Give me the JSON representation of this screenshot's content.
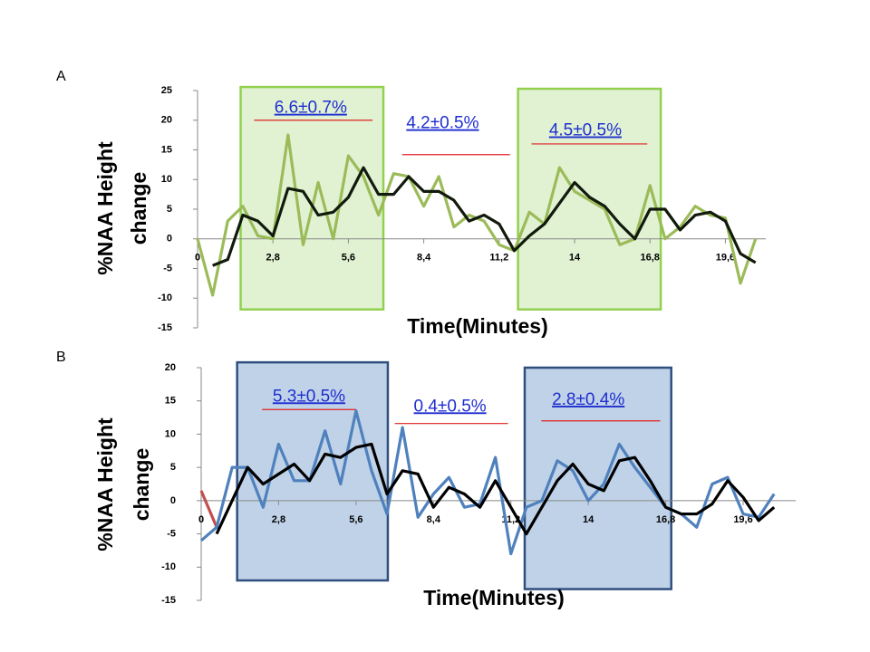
{
  "chart_data": [
    {
      "type": "line",
      "panel_label": "A",
      "ylabel": [
        "%NAA Height",
        "change"
      ],
      "xlabel": "Time(Minutes)",
      "xlim": [
        0,
        21.1
      ],
      "ylim": [
        -15,
        25
      ],
      "xticks": [
        0,
        {
          "value": 2.8,
          "label": "2,8"
        },
        {
          "value": 5.6,
          "label": "5,6"
        },
        {
          "value": 8.4,
          "label": "8,4"
        },
        {
          "value": 11.2,
          "label": "11,2"
        },
        14,
        {
          "value": 16.8,
          "label": "16,8"
        },
        {
          "value": 19.6,
          "label": "19,6"
        }
      ],
      "yticks": [
        -15,
        -10,
        -5,
        0,
        5,
        10,
        15,
        20,
        25
      ],
      "x": [
        0,
        0.56,
        1.12,
        1.68,
        2.24,
        2.8,
        3.36,
        3.92,
        4.48,
        5.04,
        5.6,
        6.16,
        6.72,
        7.28,
        7.84,
        8.4,
        8.96,
        9.52,
        10.08,
        10.64,
        11.2,
        11.76,
        12.32,
        12.88,
        13.44,
        14,
        14.56,
        15.12,
        15.68,
        16.24,
        16.8,
        17.36,
        17.92,
        18.48,
        19.04,
        19.6,
        20.16,
        20.72
      ],
      "series": [
        {
          "color": "#9bbb59",
          "values": [
            0,
            -9.5,
            3,
            5.5,
            0.5,
            0,
            17.5,
            -1,
            9.5,
            0,
            14,
            10.5,
            4,
            11,
            10.5,
            5.5,
            10.5,
            2,
            4,
            3,
            -1,
            -2,
            4.5,
            2.5,
            12,
            8,
            6.5,
            5,
            -1,
            0,
            9,
            0,
            2,
            5.5,
            4,
            3.5,
            -7.5,
            0
          ]
        },
        {
          "color": "#111a0c",
          "values": [
            null,
            -4.5,
            -3.5,
            4,
            3,
            0.5,
            8.5,
            8,
            4,
            4.5,
            7,
            12,
            7.5,
            7.5,
            10.5,
            8,
            8,
            6.5,
            3,
            4,
            2.5,
            -2,
            0.5,
            2.5,
            6,
            9.5,
            7,
            5.5,
            2.5,
            0,
            5,
            5,
            1.5,
            4,
            4.5,
            3,
            -2.5,
            -4
          ]
        }
      ],
      "spans": [
        {
          "x": [
            1.6,
            6.9
          ],
          "y": [
            -11.9,
            25.6
          ],
          "color": "#92d050"
        },
        {
          "x": [
            11.9,
            17.2
          ],
          "y": [
            -11.9,
            25.3
          ],
          "color": "#92d050"
        }
      ],
      "annotations": [
        {
          "text": "6.6±0.7%",
          "x": 4.2,
          "y": 22,
          "underline": [
            2.1,
            6.5,
            20
          ]
        },
        {
          "text": "4.2±0.5%",
          "x": 9.1,
          "y": 19.4,
          "underline": [
            7.6,
            11.6,
            14.2
          ]
        },
        {
          "text": "4.5±0.5%",
          "x": 14.4,
          "y": 18.2,
          "underline": [
            12.4,
            16.7,
            16
          ]
        }
      ]
    },
    {
      "type": "line",
      "panel_label": "B",
      "ylabel": [
        "%NAA Height",
        "change"
      ],
      "xlabel": "Time(Minutes)",
      "xlim": [
        0,
        21.5
      ],
      "ylim": [
        -15,
        20
      ],
      "xticks": [
        0,
        {
          "value": 2.8,
          "label": "2,8"
        },
        {
          "value": 5.6,
          "label": "5,6"
        },
        {
          "value": 8.4,
          "label": "8,4"
        },
        {
          "value": 11.2,
          "label": "11,2"
        },
        14,
        {
          "value": 16.8,
          "label": "16,8"
        },
        {
          "value": 19.6,
          "label": "19,6"
        }
      ],
      "yticks": [
        -15,
        -10,
        -5,
        0,
        5,
        10,
        15,
        20
      ],
      "x": [
        0,
        0.56,
        1.12,
        1.68,
        2.24,
        2.8,
        3.36,
        3.92,
        4.48,
        5.04,
        5.6,
        6.16,
        6.72,
        7.28,
        7.84,
        8.4,
        8.96,
        9.52,
        10.08,
        10.64,
        11.2,
        11.76,
        12.32,
        12.88,
        13.44,
        14,
        14.56,
        15.12,
        15.68,
        16.24,
        16.8,
        17.36,
        17.92,
        18.48,
        19.04,
        19.6,
        20.16,
        20.72
      ],
      "series": [
        {
          "color": "#c0504d",
          "values": [
            1.5,
            -4,
            null,
            null,
            null,
            null,
            null,
            null,
            null,
            null,
            null,
            null,
            null,
            null,
            null,
            null,
            null,
            null,
            null,
            null,
            null,
            null,
            null,
            null,
            null,
            null,
            null,
            null,
            null,
            null,
            null,
            null,
            null,
            null,
            null,
            null,
            null,
            null
          ]
        },
        {
          "color": "#4f81bd",
          "values": [
            -6,
            -4,
            5,
            5,
            -1,
            8.5,
            3,
            3,
            10.5,
            2.5,
            13.5,
            4.5,
            -2,
            11,
            -2.5,
            1,
            3.5,
            -1,
            -0.5,
            6.5,
            -8,
            -1,
            0,
            6,
            4.5,
            0,
            2.5,
            8.5,
            5,
            2,
            -1,
            -2,
            -4,
            2.5,
            3.5,
            -2,
            -2.5,
            1
          ]
        },
        {
          "color": "#000000",
          "values": [
            null,
            -5,
            0,
            5,
            2.5,
            4,
            5.5,
            3,
            7,
            6.5,
            8,
            8.5,
            1,
            4.5,
            4,
            -1,
            2,
            1,
            -1,
            3,
            -1,
            -5,
            -1,
            3,
            5.5,
            2.5,
            1.5,
            6,
            6.5,
            3,
            -1,
            -2,
            -2,
            -0.5,
            3,
            0.5,
            -3,
            -1
          ]
        }
      ],
      "spans": [
        {
          "x": [
            1.3,
            6.75
          ],
          "y": [
            -12,
            20.8
          ],
          "color": "#2f4f7f"
        },
        {
          "x": [
            11.7,
            17.0
          ],
          "y": [
            -13.3,
            20
          ],
          "color": "#2f4f7f"
        }
      ],
      "annotations": [
        {
          "text": "5.3±0.5%",
          "x": 3.9,
          "y": 15.6,
          "underline": [
            2.2,
            5.6,
            13.7
          ]
        },
        {
          "text": "0.4±0.5%",
          "x": 9.0,
          "y": 14.1,
          "underline": [
            7.0,
            11.1,
            11.6
          ]
        },
        {
          "text": "2.8±0.4%",
          "x": 14.0,
          "y": 15.1,
          "underline": [
            12.3,
            16.6,
            12
          ]
        }
      ]
    }
  ]
}
